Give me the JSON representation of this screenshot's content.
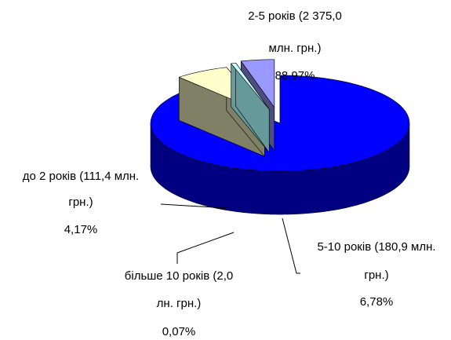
{
  "chart_data": {
    "type": "pie",
    "style": "3d-exploded",
    "slices": [
      {
        "label_lines": [
          "2-5 років (2 375,0",
          "млн. грн.)",
          "88,97%"
        ],
        "value": 2375.0,
        "percent": 88.97,
        "color": "#0000ff",
        "side_color": "#000080"
      },
      {
        "label_lines": [
          "5-10 років (180,9 млн.",
          "грн.)",
          "6,78%"
        ],
        "value": 180.9,
        "percent": 6.78,
        "color": "#ffffcc",
        "side_color": "#808066"
      },
      {
        "label_lines": [
          "більше 10 років (2,0",
          "лн. грн.)",
          "0,07%"
        ],
        "value": 2.0,
        "percent": 0.07,
        "color": "#ccffff",
        "side_color": "#669999"
      },
      {
        "label_lines": [
          "до 2 років (111,4 млн.",
          "грн.)",
          "4,17%"
        ],
        "value": 111.4,
        "percent": 4.17,
        "color": "#9999ff",
        "side_color": "#4d4d80"
      }
    ]
  }
}
